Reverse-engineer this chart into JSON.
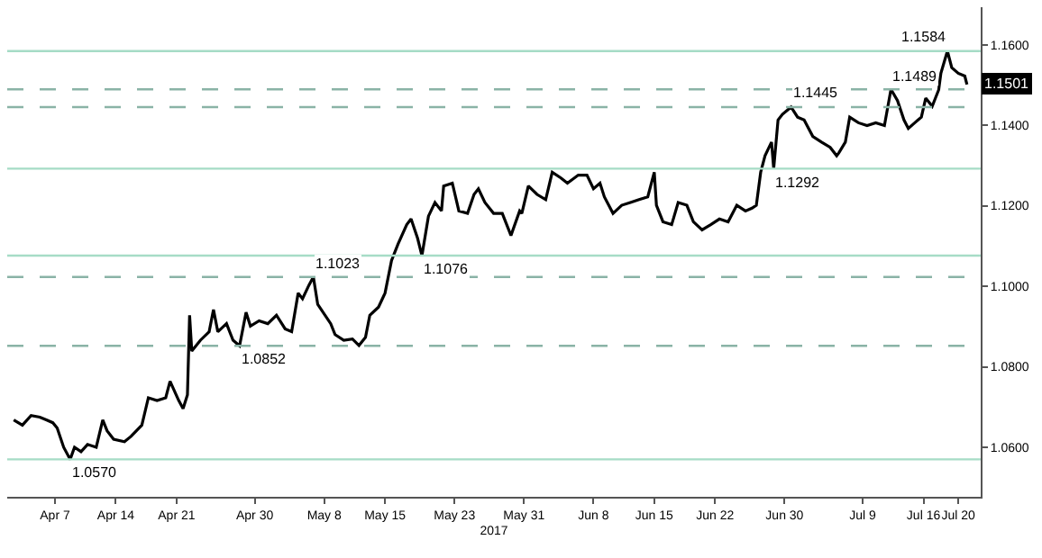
{
  "chart_data": {
    "type": "line",
    "xlabel": "2017",
    "x": [
      "2017-04-02T06:00",
      "2017-04-03T06:00",
      "2017-04-04T06:00",
      "2017-04-05T06:00",
      "2017-04-06T00:00",
      "2017-04-06T18:00",
      "2017-04-07T06:00",
      "2017-04-08T00:00",
      "2017-04-08T18:00",
      "2017-04-09T06:00",
      "2017-04-10T00:00",
      "2017-04-10T18:00",
      "2017-04-11T18:00",
      "2017-04-12T12:00",
      "2017-04-13T00:00",
      "2017-04-13T18:00",
      "2017-04-15T00:00",
      "2017-04-15T18:00",
      "2017-04-16T12:00",
      "2017-04-17T00:00",
      "2017-04-17T18:00",
      "2017-04-18T18:00",
      "2017-04-19T18:00",
      "2017-04-20T06:00",
      "2017-04-21T06:00",
      "2017-04-21T18:00",
      "2017-04-22T06:00",
      "2017-04-22T12:00",
      "2017-04-22T18:00",
      "2017-04-23T18:00",
      "2017-04-24T18:00",
      "2017-04-25T06:00",
      "2017-04-25T18:00",
      "2017-04-26T18:00",
      "2017-04-27T12:00",
      "2017-04-28T06:00",
      "2017-04-29T00:00",
      "2017-04-29T12:00",
      "2017-04-30T12:00",
      "2017-05-01T12:00",
      "2017-05-02T12:00",
      "2017-05-03T12:00",
      "2017-05-04T06:00",
      "2017-05-05T00:00",
      "2017-05-05T12:00",
      "2017-05-06T06:00",
      "2017-05-06T18:00",
      "2017-05-07T06:00",
      "2017-05-08T18:00",
      "2017-05-09T06:00",
      "2017-05-10T06:00",
      "2017-05-11T06:00",
      "2017-05-12T00:00",
      "2017-05-12T18:00",
      "2017-05-13T06:00",
      "2017-05-14T06:00",
      "2017-05-15T00:00",
      "2017-05-15T18:00",
      "2017-05-16T12:00",
      "2017-05-17T12:00",
      "2017-05-18T00:00",
      "2017-05-18T18:00",
      "2017-05-19T06:00",
      "2017-05-20T00:00",
      "2017-05-20T18:00",
      "2017-05-21T12:00",
      "2017-05-21T18:00",
      "2017-05-22T18:00",
      "2017-05-23T12:00",
      "2017-05-24T12:00",
      "2017-05-25T06:00",
      "2017-05-25T18:00",
      "2017-05-26T12:00",
      "2017-05-27T12:00",
      "2017-05-28T12:00",
      "2017-05-29T12:00",
      "2017-05-30T12:00",
      "2017-05-30T18:00",
      "2017-05-31T12:00",
      "2017-06-01T12:00",
      "2017-06-02T12:00",
      "2017-06-03T06:00",
      "2017-06-04T06:00",
      "2017-06-05T00:00",
      "2017-06-06T06:00",
      "2017-06-07T06:00",
      "2017-06-08T00:00",
      "2017-06-08T18:00",
      "2017-06-09T06:00",
      "2017-06-10T06:00",
      "2017-06-11T06:00",
      "2017-06-12T06:00",
      "2017-06-13T06:00",
      "2017-06-14T06:00",
      "2017-06-15T00:00",
      "2017-06-15T06:00",
      "2017-06-16T00:00",
      "2017-06-17T00:00",
      "2017-06-17T18:00",
      "2017-06-18T18:00",
      "2017-06-19T12:00",
      "2017-06-20T12:00",
      "2017-06-21T12:00",
      "2017-06-22T12:00",
      "2017-06-23T12:00",
      "2017-06-24T12:00",
      "2017-06-25T12:00",
      "2017-06-26T06:00",
      "2017-06-26T18:00",
      "2017-06-27T06:00",
      "2017-06-27T18:00",
      "2017-06-28T12:00",
      "2017-06-28T18:00",
      "2017-06-29T06:00",
      "2017-06-29T18:00",
      "2017-06-30T18:00",
      "2017-07-01T12:00",
      "2017-07-02T06:00",
      "2017-07-03T06:00",
      "2017-07-04T06:00",
      "2017-07-05T06:00",
      "2017-07-06T00:00",
      "2017-07-06T06:00",
      "2017-07-07T00:00",
      "2017-07-07T12:00",
      "2017-07-08T12:00",
      "2017-07-09T12:00",
      "2017-07-10T12:00",
      "2017-07-11T12:00",
      "2017-07-12T06:00",
      "2017-07-13T00:00",
      "2017-07-13T18:00",
      "2017-07-14T06:00",
      "2017-07-15T00:00",
      "2017-07-15T18:00",
      "2017-07-16T06:00",
      "2017-07-17T00:00",
      "2017-07-17T18:00",
      "2017-07-18T00:00",
      "2017-07-18T18:00",
      "2017-07-19T06:00",
      "2017-07-20T00:00",
      "2017-07-20T18:00",
      "2017-07-21T00:00"
    ],
    "series": [
      {
        "color": "#000000",
        "values": [
          1.0668,
          1.0655,
          1.0679,
          1.0675,
          1.0668,
          1.0661,
          1.0648,
          1.06,
          1.057,
          1.06,
          1.0589,
          1.0607,
          1.06,
          1.0668,
          1.0641,
          1.062,
          1.0614,
          1.0627,
          1.0644,
          1.0655,
          1.0723,
          1.0716,
          1.0723,
          1.0764,
          1.0716,
          1.0696,
          1.073,
          1.0928,
          1.0839,
          1.0866,
          1.0887,
          1.0942,
          1.0887,
          1.0907,
          1.0866,
          1.0852,
          1.0935,
          1.0901,
          1.0914,
          1.0907,
          1.0928,
          1.0894,
          1.0887,
          1.0983,
          1.0969,
          1.1003,
          1.1023,
          1.0955,
          1.0907,
          1.088,
          1.0866,
          1.0869,
          1.0853,
          1.0873,
          1.0928,
          1.0948,
          1.0983,
          1.1064,
          1.1105,
          1.1153,
          1.1167,
          1.1119,
          1.1076,
          1.1174,
          1.1208,
          1.1187,
          1.1249,
          1.1256,
          1.1187,
          1.1181,
          1.1228,
          1.1242,
          1.1208,
          1.1181,
          1.1181,
          1.1126,
          1.1187,
          1.1181,
          1.1249,
          1.1228,
          1.1215,
          1.1283,
          1.1269,
          1.1256,
          1.1276,
          1.1276,
          1.1242,
          1.1256,
          1.1222,
          1.1181,
          1.1201,
          1.1208,
          1.1215,
          1.1222,
          1.1283,
          1.1201,
          1.116,
          1.1153,
          1.1208,
          1.1201,
          1.116,
          1.114,
          1.1153,
          1.1167,
          1.116,
          1.1201,
          1.1187,
          1.1194,
          1.1201,
          1.1283,
          1.1324,
          1.1358,
          1.1292,
          1.1413,
          1.1427,
          1.1445,
          1.142,
          1.1413,
          1.1372,
          1.1358,
          1.1345,
          1.1324,
          1.1331,
          1.1358,
          1.142,
          1.1406,
          1.1399,
          1.1406,
          1.1399,
          1.1489,
          1.1461,
          1.1413,
          1.1392,
          1.1406,
          1.142,
          1.1467,
          1.1447,
          1.1488,
          1.1529,
          1.1584,
          1.1543,
          1.1529,
          1.1522,
          1.1501
        ]
      }
    ],
    "xlim": [
      "2017-04-01T12:00",
      "2017-07-22T14:00"
    ],
    "xticks": [
      {
        "value": "2017-04-07",
        "label": "Apr 7"
      },
      {
        "value": "2017-04-14",
        "label": "Apr 14"
      },
      {
        "value": "2017-04-21",
        "label": "Apr 21"
      },
      {
        "value": "2017-04-30",
        "label": "Apr 30"
      },
      {
        "value": "2017-05-08",
        "label": "May 8"
      },
      {
        "value": "2017-05-15",
        "label": "May 15"
      },
      {
        "value": "2017-05-23",
        "label": "May 23"
      },
      {
        "value": "2017-05-31",
        "label": "May 31"
      },
      {
        "value": "2017-06-08",
        "label": "Jun 8"
      },
      {
        "value": "2017-06-15",
        "label": "Jun 15"
      },
      {
        "value": "2017-06-22",
        "label": "Jun 22"
      },
      {
        "value": "2017-06-30",
        "label": "Jun 30"
      },
      {
        "value": "2017-07-09",
        "label": "Jul 9"
      },
      {
        "value": "2017-07-16",
        "label": "Jul 16"
      },
      {
        "value": "2017-07-20",
        "label": "Jul 20"
      }
    ],
    "ylim": [
      1.0477,
      1.1693
    ],
    "yticks": [
      {
        "value": 1.06,
        "label": "1.0600"
      },
      {
        "value": 1.08,
        "label": "1.0800"
      },
      {
        "value": 1.1,
        "label": "1.1000"
      },
      {
        "value": 1.12,
        "label": "1.1200"
      },
      {
        "value": 1.14,
        "label": "1.1400"
      },
      {
        "value": 1.16,
        "label": "1.1600"
      }
    ],
    "marker": "none",
    "line_style": "solid",
    "ref_lines": [
      {
        "axis": "y",
        "value": 1.057,
        "color": "#a6dcc6",
        "line_style": "solid"
      },
      {
        "axis": "y",
        "value": 1.0852,
        "color": "#8ab3a6",
        "line_style": "dashed"
      },
      {
        "axis": "y",
        "value": 1.1023,
        "color": "#8ab3a6",
        "line_style": "dashed"
      },
      {
        "axis": "y",
        "value": 1.1076,
        "color": "#a6dcc6",
        "line_style": "solid"
      },
      {
        "axis": "y",
        "value": 1.1292,
        "color": "#a6dcc6",
        "line_style": "solid"
      },
      {
        "axis": "y",
        "value": 1.1445,
        "color": "#8ab3a6",
        "line_style": "dashed"
      },
      {
        "axis": "y",
        "value": 1.1489,
        "color": "#8ab3a6",
        "line_style": "dashed"
      },
      {
        "axis": "y",
        "value": 1.1584,
        "color": "#a6dcc6",
        "line_style": "solid"
      }
    ],
    "annotations": [
      {
        "text": "1.0570",
        "x": "2017-04-08T18:00",
        "y": 1.057
      },
      {
        "text": "1.0852",
        "x": "2017-04-28T06:00",
        "y": 1.0852
      },
      {
        "text": "1.1023",
        "x": "2017-05-06T18:00",
        "y": 1.1023
      },
      {
        "text": "1.1076",
        "x": "2017-05-19T06:00",
        "y": 1.1076
      },
      {
        "text": "1.1292",
        "x": "2017-06-28T18:00",
        "y": 1.1292
      },
      {
        "text": "1.1445",
        "x": "2017-06-30T18:00",
        "y": 1.1445
      },
      {
        "text": "1.1489",
        "x": "2017-07-12T06:00",
        "y": 1.1489
      },
      {
        "text": "1.1584",
        "x": "2017-07-18T18:00",
        "y": 1.1584
      },
      {
        "text": "1.1501",
        "x": "2017-07-21T00:00",
        "y": 1.1501
      }
    ]
  }
}
